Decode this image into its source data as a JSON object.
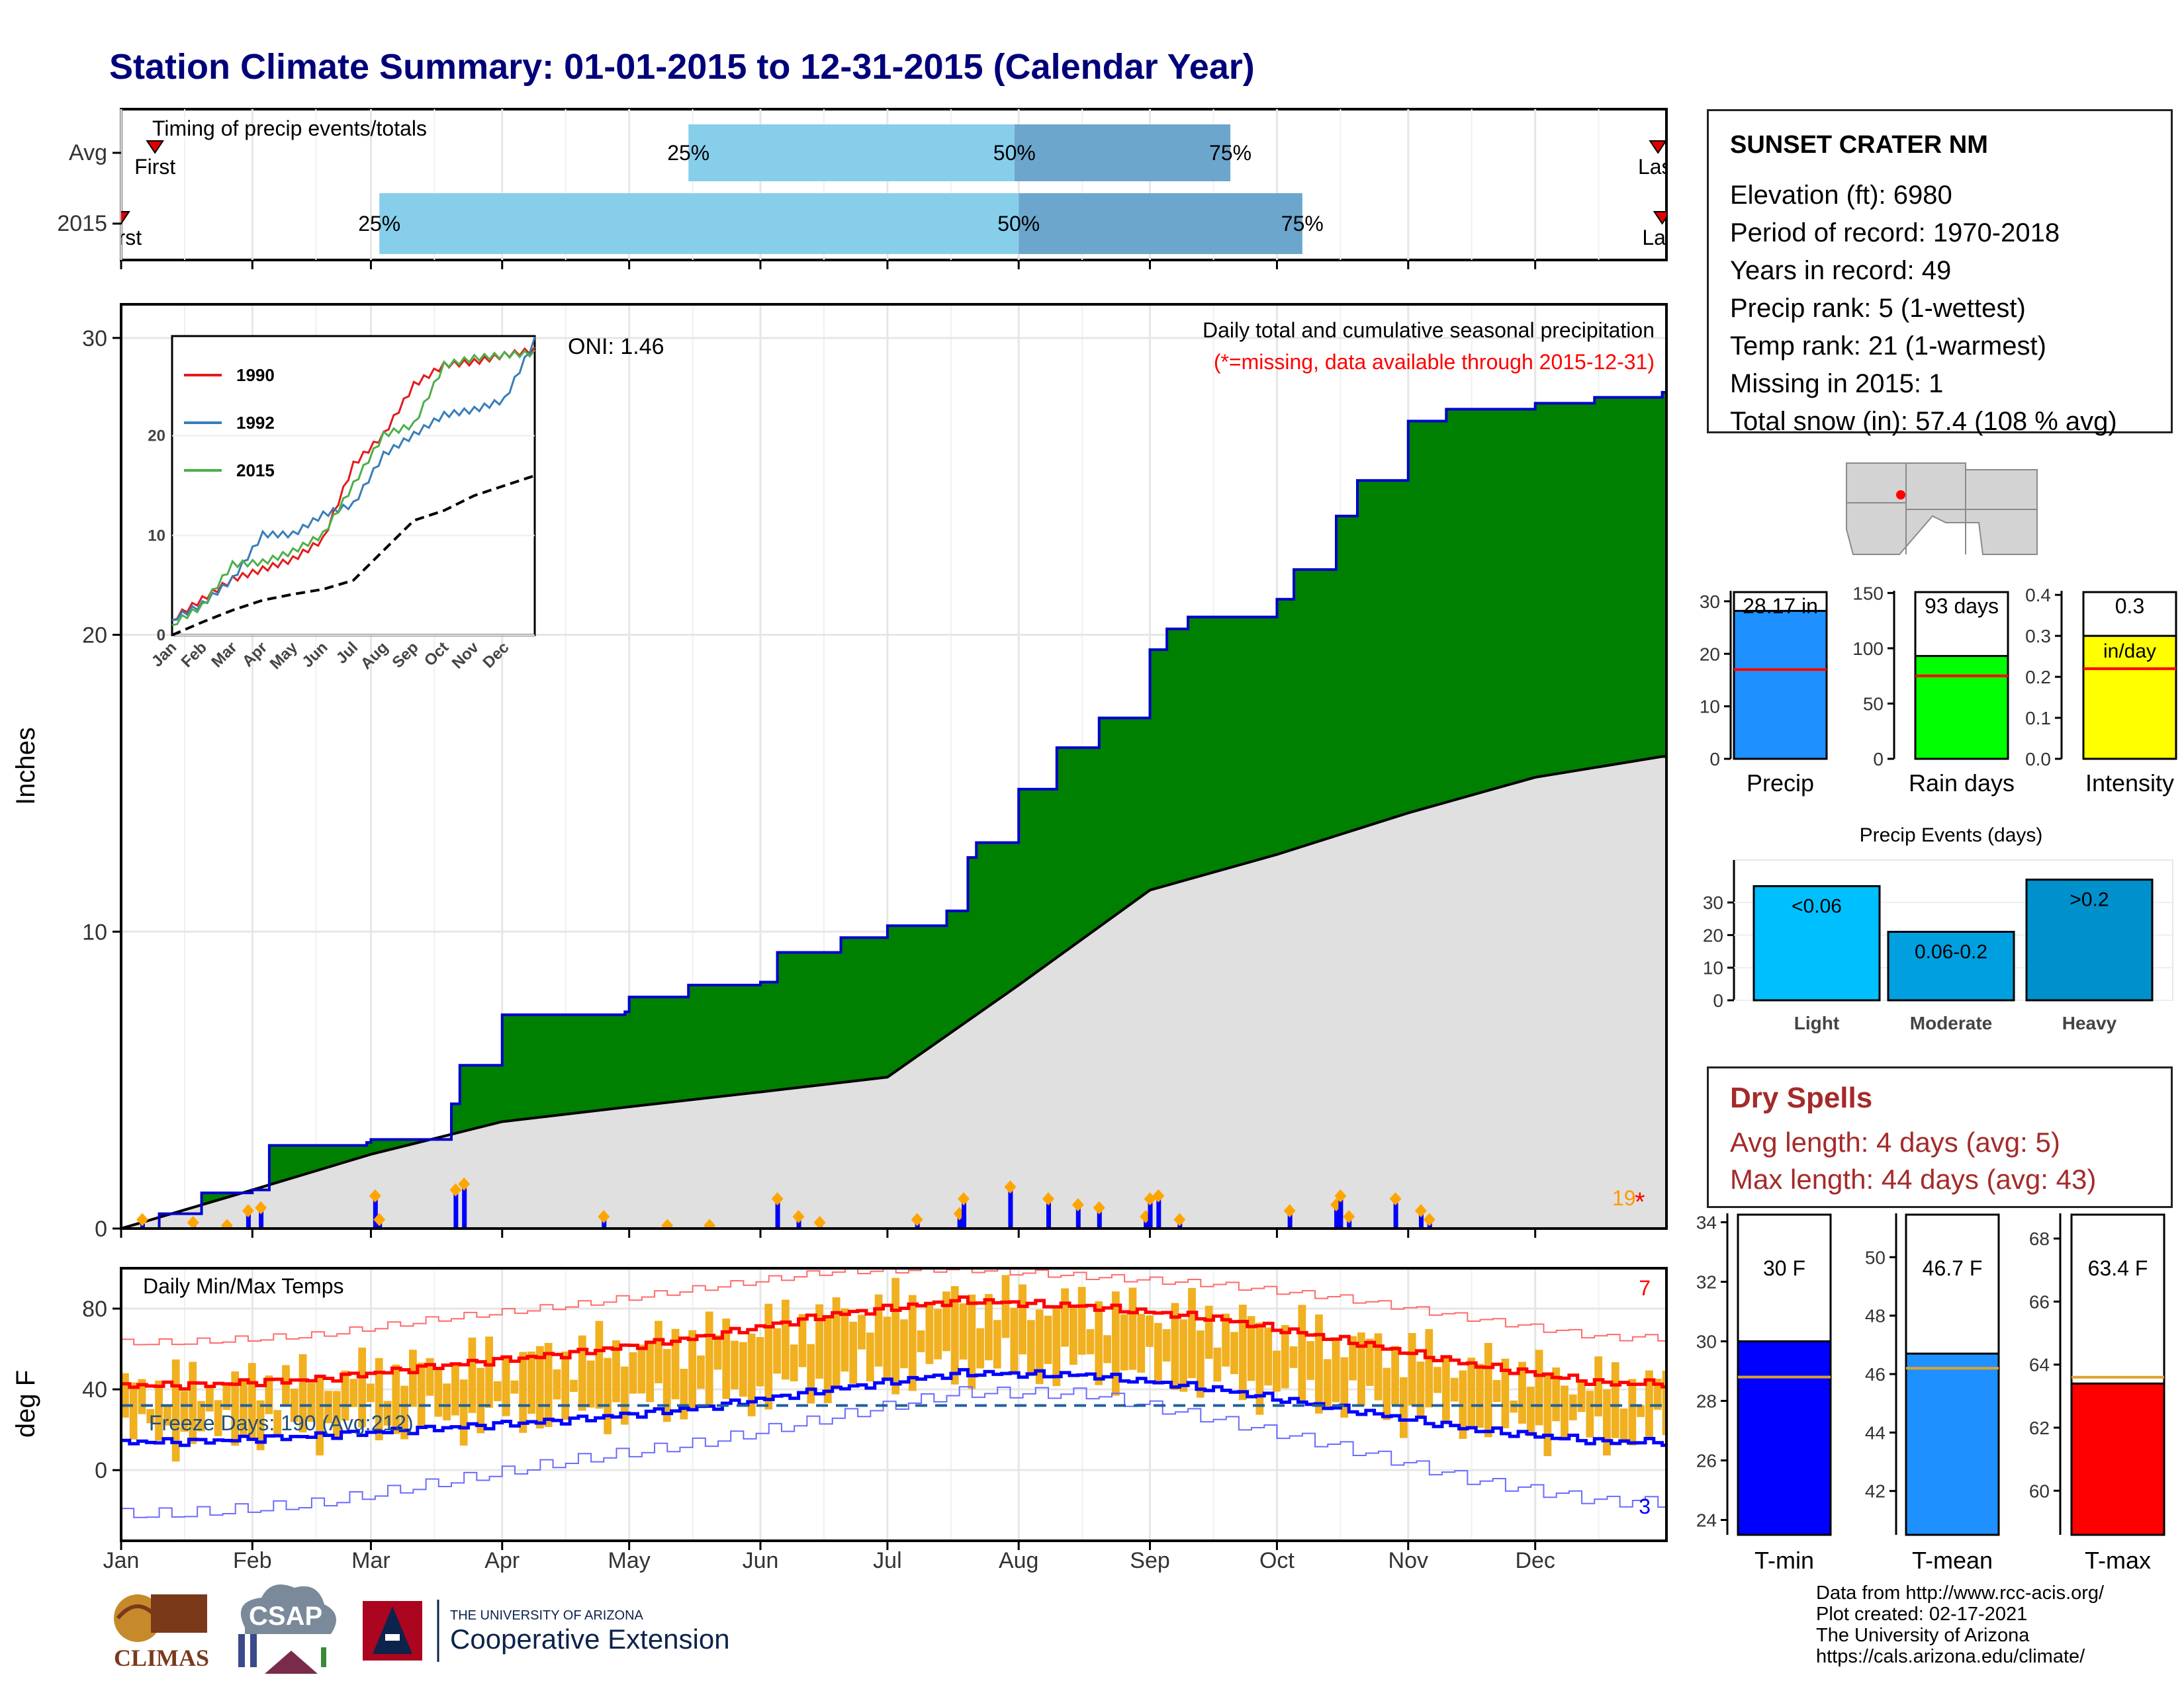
{
  "title": "Station Climate Summary: 01-01-2015 to 12-31-2015 (Calendar Year)",
  "colors": {
    "title": "#00007a",
    "precip_fill": "#008000",
    "precip_line": "#0000cd",
    "normal_fill": "#e0e0e0",
    "daily_bar": "#0000ff",
    "temp_bar": "#f0b020",
    "tmax": "#ff0000",
    "tmin": "#0000ff",
    "dry": "#a52a2a"
  },
  "station": {
    "name": "SUNSET CRATER NM",
    "lines": [
      "Elevation (ft): 6980",
      "Period of record: 1970-2018",
      "Years in record: 49",
      "Precip rank: 5 (1-wettest)",
      "Temp rank: 21 (1-warmest)",
      "Missing in 2015: 1",
      "Total snow (in): 57.4 (108 % avg)"
    ]
  },
  "dry_spells": {
    "title": "Dry Spells",
    "avg_length": "Avg length: 4 days (avg: 5)",
    "max_length": "Max length: 44 days (avg: 43)"
  },
  "credits": [
    "Data from http://www.rcc-acis.org/",
    "Plot created: 02-17-2021",
    "The University of Arizona",
    "https://cals.arizona.edu/climate/"
  ],
  "logos": {
    "climas": "CLIMAS",
    "csap": "CSAP",
    "ua_small": "THE UNIVERSITY OF ARIZONA",
    "ua_big": "Cooperative Extension"
  },
  "months": [
    "Jan",
    "Feb",
    "Mar",
    "Apr",
    "May",
    "Jun",
    "Jul",
    "Aug",
    "Sep",
    "Oct",
    "Nov",
    "Dec"
  ],
  "chart_data": [
    {
      "id": "timing",
      "type": "bar",
      "title": "Timing of precip events/totals",
      "categories": [
        "Avg",
        "2015"
      ],
      "series": [
        {
          "name": "Avg",
          "first": "Jan 09",
          "p25": "May 15",
          "p50": "Jul 31",
          "p75": "Sep 20",
          "last": "Dec 30"
        },
        {
          "name": "2015",
          "first": "Jan 01",
          "p25": "Mar 03",
          "p50": "Aug 01",
          "p75": "Oct 07",
          "last": "Dec 31"
        }
      ],
      "marker_labels": {
        "first": "First",
        "last": "Last",
        "p25": "25%",
        "p50": "50%",
        "p75": "75%"
      }
    },
    {
      "id": "precip",
      "type": "area",
      "title": "Daily total and cumulative seasonal precipitation",
      "subtitle": "(*=missing, data available through 2015-12-31)",
      "ylabel": "Inches",
      "ylim": [
        0,
        30
      ],
      "yticks": [
        0,
        10,
        20,
        30
      ],
      "oni_label": "ONI: 1.46",
      "corner_label": "19",
      "cumulative_2015": [
        {
          "date": "2015-01-01",
          "v": 0.0
        },
        {
          "date": "2015-01-10",
          "v": 0.5
        },
        {
          "date": "2015-01-20",
          "v": 1.2
        },
        {
          "date": "2015-02-01",
          "v": 1.3
        },
        {
          "date": "2015-02-05",
          "v": 2.8
        },
        {
          "date": "2015-02-28",
          "v": 2.9
        },
        {
          "date": "2015-03-01",
          "v": 3.0
        },
        {
          "date": "2015-03-20",
          "v": 4.2
        },
        {
          "date": "2015-03-22",
          "v": 5.5
        },
        {
          "date": "2015-04-01",
          "v": 7.2
        },
        {
          "date": "2015-04-30",
          "v": 7.3
        },
        {
          "date": "2015-05-01",
          "v": 7.8
        },
        {
          "date": "2015-05-15",
          "v": 8.2
        },
        {
          "date": "2015-06-01",
          "v": 8.3
        },
        {
          "date": "2015-06-05",
          "v": 9.3
        },
        {
          "date": "2015-06-20",
          "v": 9.8
        },
        {
          "date": "2015-07-01",
          "v": 10.2
        },
        {
          "date": "2015-07-15",
          "v": 10.7
        },
        {
          "date": "2015-07-20",
          "v": 12.5
        },
        {
          "date": "2015-07-22",
          "v": 13.0
        },
        {
          "date": "2015-08-01",
          "v": 14.8
        },
        {
          "date": "2015-08-10",
          "v": 16.2
        },
        {
          "date": "2015-08-20",
          "v": 17.2
        },
        {
          "date": "2015-09-01",
          "v": 19.5
        },
        {
          "date": "2015-09-05",
          "v": 20.2
        },
        {
          "date": "2015-09-10",
          "v": 20.6
        },
        {
          "date": "2015-10-01",
          "v": 21.2
        },
        {
          "date": "2015-10-05",
          "v": 22.2
        },
        {
          "date": "2015-10-15",
          "v": 24.0
        },
        {
          "date": "2015-10-20",
          "v": 25.2
        },
        {
          "date": "2015-11-01",
          "v": 27.2
        },
        {
          "date": "2015-11-10",
          "v": 27.6
        },
        {
          "date": "2015-12-01",
          "v": 27.8
        },
        {
          "date": "2015-12-15",
          "v": 28.0
        },
        {
          "date": "2015-12-31",
          "v": 28.17
        }
      ],
      "cumulative_normal": [
        {
          "date": "2015-01-01",
          "v": 0.0
        },
        {
          "date": "2015-02-01",
          "v": 1.3
        },
        {
          "date": "2015-03-01",
          "v": 2.5
        },
        {
          "date": "2015-04-01",
          "v": 3.6
        },
        {
          "date": "2015-05-01",
          "v": 4.1
        },
        {
          "date": "2015-06-01",
          "v": 4.6
        },
        {
          "date": "2015-07-01",
          "v": 5.1
        },
        {
          "date": "2015-08-01",
          "v": 8.2
        },
        {
          "date": "2015-09-01",
          "v": 11.4
        },
        {
          "date": "2015-10-01",
          "v": 12.6
        },
        {
          "date": "2015-11-01",
          "v": 14.0
        },
        {
          "date": "2015-12-01",
          "v": 15.2
        },
        {
          "date": "2015-12-31",
          "v": 15.9
        }
      ],
      "daily_events": [
        {
          "date": "2015-01-06",
          "v": 0.3
        },
        {
          "date": "2015-01-18",
          "v": 0.2
        },
        {
          "date": "2015-01-26",
          "v": 0.1
        },
        {
          "date": "2015-01-31",
          "v": 0.6
        },
        {
          "date": "2015-02-03",
          "v": 0.7
        },
        {
          "date": "2015-03-02",
          "v": 1.1
        },
        {
          "date": "2015-03-03",
          "v": 0.3
        },
        {
          "date": "2015-03-21",
          "v": 1.3
        },
        {
          "date": "2015-03-23",
          "v": 1.5
        },
        {
          "date": "2015-04-25",
          "v": 0.4
        },
        {
          "date": "2015-05-10",
          "v": 0.1
        },
        {
          "date": "2015-05-20",
          "v": 0.1
        },
        {
          "date": "2015-06-05",
          "v": 1.0
        },
        {
          "date": "2015-06-10",
          "v": 0.4
        },
        {
          "date": "2015-06-15",
          "v": 0.2
        },
        {
          "date": "2015-07-08",
          "v": 0.3
        },
        {
          "date": "2015-07-18",
          "v": 0.5
        },
        {
          "date": "2015-07-19",
          "v": 1.0
        },
        {
          "date": "2015-07-30",
          "v": 1.4
        },
        {
          "date": "2015-08-08",
          "v": 1.0
        },
        {
          "date": "2015-08-15",
          "v": 0.8
        },
        {
          "date": "2015-08-20",
          "v": 0.7
        },
        {
          "date": "2015-08-31",
          "v": 0.4
        },
        {
          "date": "2015-09-01",
          "v": 1.0
        },
        {
          "date": "2015-09-03",
          "v": 1.1
        },
        {
          "date": "2015-09-08",
          "v": 0.3
        },
        {
          "date": "2015-10-04",
          "v": 0.6
        },
        {
          "date": "2015-10-15",
          "v": 0.8
        },
        {
          "date": "2015-10-16",
          "v": 1.1
        },
        {
          "date": "2015-10-18",
          "v": 0.4
        },
        {
          "date": "2015-10-29",
          "v": 1.0
        },
        {
          "date": "2015-11-04",
          "v": 0.6
        },
        {
          "date": "2015-11-06",
          "v": 0.3
        }
      ],
      "inset": {
        "type": "line",
        "ylim": [
          0,
          30
        ],
        "yticks": [
          0,
          10,
          20
        ],
        "series": [
          {
            "name": "1990",
            "color": "#e41a1c",
            "points": [
              [
                0,
                1.5
              ],
              [
                1,
                3.5
              ],
              [
                2,
                5.5
              ],
              [
                3,
                6.5
              ],
              [
                4,
                7.5
              ],
              [
                5,
                9.5
              ],
              [
                6,
                17
              ],
              [
                7,
                20
              ],
              [
                8,
                25
              ],
              [
                9,
                27
              ],
              [
                10,
                27.3
              ],
              [
                11,
                28
              ],
              [
                12,
                28.5
              ]
            ]
          },
          {
            "name": "1992",
            "color": "#377eb8",
            "points": [
              [
                0,
                1.5
              ],
              [
                1,
                3
              ],
              [
                2,
                5.5
              ],
              [
                3,
                10
              ],
              [
                4,
                10
              ],
              [
                5,
                12
              ],
              [
                6,
                13
              ],
              [
                7,
                18
              ],
              [
                8,
                20
              ],
              [
                9,
                22
              ],
              [
                10,
                22.5
              ],
              [
                11,
                23.5
              ],
              [
                12,
                29.5
              ]
            ]
          },
          {
            "name": "2015",
            "color": "#4daf4a",
            "points": [
              [
                0,
                1
              ],
              [
                1,
                2.8
              ],
              [
                2,
                7
              ],
              [
                3,
                7.2
              ],
              [
                4,
                8.3
              ],
              [
                5,
                10
              ],
              [
                6,
                15
              ],
              [
                7,
                20
              ],
              [
                8,
                21
              ],
              [
                9,
                27
              ],
              [
                10,
                27.7
              ],
              [
                11,
                28
              ],
              [
                12,
                28.2
              ]
            ]
          },
          {
            "name": "avg",
            "color": "#000000",
            "dashed": true,
            "points": [
              [
                0,
                0
              ],
              [
                1,
                1.3
              ],
              [
                2,
                2.5
              ],
              [
                3,
                3.5
              ],
              [
                4,
                4.1
              ],
              [
                5,
                4.6
              ],
              [
                6,
                5.5
              ],
              [
                7,
                8.5
              ],
              [
                8,
                11.5
              ],
              [
                9,
                12.5
              ],
              [
                10,
                14
              ],
              [
                11,
                15
              ],
              [
                12,
                16
              ]
            ]
          }
        ]
      }
    },
    {
      "id": "temps",
      "type": "line",
      "title": "Daily Min/Max Temps",
      "ylabel": "deg F",
      "ylim": [
        -35,
        100
      ],
      "yticks": [
        0,
        40,
        80
      ],
      "freeze_label": "Freeze Days: 190 (Avg:212)",
      "freeze_line": 32,
      "record_high_count": "7",
      "record_low_count": "3",
      "avg_max_monthly": [
        42,
        45,
        52,
        58,
        66,
        77,
        84,
        81,
        75,
        64,
        52,
        43
      ],
      "avg_min_monthly": [
        14,
        17,
        21,
        25,
        31,
        40,
        48,
        47,
        40,
        30,
        20,
        14
      ],
      "record_max_monthly": [
        63,
        66,
        74,
        80,
        88,
        96,
        97,
        93,
        89,
        82,
        72,
        63
      ],
      "record_min_monthly": [
        -22,
        -18,
        -8,
        2,
        10,
        22,
        34,
        33,
        20,
        6,
        -10,
        -20
      ]
    },
    {
      "id": "summary_bars",
      "type": "bar",
      "panels": [
        {
          "name": "Precip",
          "value": 28.17,
          "label": "28.17 in",
          "avg": 17,
          "ylim": [
            0,
            32
          ],
          "yticks": [
            0,
            10,
            20,
            30
          ],
          "color": "#1e90ff"
        },
        {
          "name": "Rain days",
          "value": 93,
          "label": "93 days",
          "avg": 75,
          "ylim": [
            0,
            152
          ],
          "yticks": [
            0,
            50,
            100,
            150
          ],
          "color": "#00ff00"
        },
        {
          "name": "Intensity",
          "value": 0.3,
          "label": "0.3",
          "sublabel": "in/day",
          "avg": 0.22,
          "ylim": [
            0,
            0.41
          ],
          "yticks": [
            0,
            0.1,
            0.2,
            0.3,
            0.4
          ],
          "color": "#ffff00"
        }
      ]
    },
    {
      "id": "precip_events",
      "type": "bar",
      "title": "Precip Events (days)",
      "categories": [
        "Light",
        "Moderate",
        "Heavy"
      ],
      "values": [
        35,
        21,
        37
      ],
      "bar_labels": [
        "<0.06",
        "0.06-0.2",
        ">0.2"
      ],
      "ylim": [
        0,
        40
      ],
      "yticks": [
        0,
        10,
        20,
        30
      ]
    },
    {
      "id": "temp_bars",
      "type": "bar",
      "panels": [
        {
          "name": "T-min",
          "value": 30,
          "label": "30 F",
          "avg": 28.8,
          "ylim": [
            23.5,
            34.3
          ],
          "yticks": [
            24,
            26,
            28,
            30,
            32,
            34
          ],
          "color": "#0000ff"
        },
        {
          "name": "T-mean",
          "value": 46.7,
          "label": "46.7 F",
          "avg": 46.2,
          "ylim": [
            40.5,
            51.5
          ],
          "yticks": [
            42,
            44,
            46,
            48,
            50
          ],
          "color": "#1e90ff"
        },
        {
          "name": "T-max",
          "value": 63.4,
          "label": "63.4 F",
          "avg": 63.6,
          "ylim": [
            58.6,
            68.8
          ],
          "yticks": [
            60,
            62,
            64,
            66,
            68
          ],
          "color": "#ff0000"
        }
      ]
    }
  ]
}
